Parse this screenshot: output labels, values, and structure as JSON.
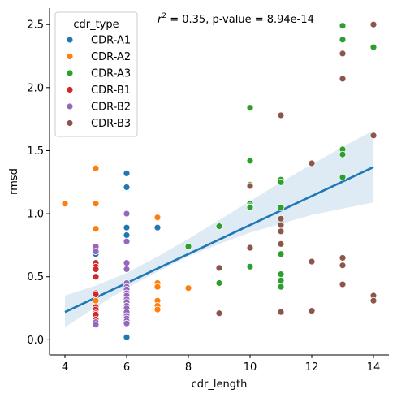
{
  "chart_data": {
    "type": "scatter",
    "xlabel": "cdr_length",
    "ylabel": "rmsd",
    "xlim": [
      3.5,
      14.5
    ],
    "ylim": [
      -0.12,
      2.63
    ],
    "x_ticks": [
      4,
      6,
      8,
      10,
      12,
      14
    ],
    "x_tick_labels": [
      "4",
      "6",
      "8",
      "10",
      "12",
      "14"
    ],
    "y_ticks": [
      0.0,
      0.5,
      1.0,
      1.5,
      2.0,
      2.5
    ],
    "y_tick_labels": [
      "0.0",
      "0.5",
      "1.0",
      "1.5",
      "2.0",
      "2.5"
    ],
    "grid": false,
    "legend_title": "cdr_type",
    "legend_position": "top-left",
    "annotation": {
      "r_symbol": "r",
      "exponent": "2",
      "text": " =  0.35, p-value =  8.94e-14"
    },
    "series": [
      {
        "name": "CDR-A1",
        "color": "#1f77b4",
        "x": [
          5,
          6,
          6,
          6,
          6,
          6,
          7,
          6
        ],
        "y": [
          0.68,
          1.32,
          1.21,
          0.89,
          0.83,
          0.78,
          0.89,
          0.02
        ]
      },
      {
        "name": "CDR-A2",
        "color": "#ff7f0e",
        "x": [
          4,
          5,
          5,
          5,
          5,
          5,
          5,
          7,
          7,
          7,
          7,
          7,
          7,
          8
        ],
        "y": [
          1.08,
          1.36,
          1.08,
          0.88,
          0.31,
          0.18,
          0.15,
          0.97,
          0.45,
          0.42,
          0.31,
          0.27,
          0.24,
          0.41
        ]
      },
      {
        "name": "CDR-A3",
        "color": "#2ca02c",
        "x": [
          8,
          9,
          9,
          10,
          10,
          10,
          10,
          10,
          10,
          10,
          11,
          11,
          11,
          11,
          11,
          11,
          11,
          11,
          13,
          13,
          13,
          13,
          13,
          14
        ],
        "y": [
          0.74,
          0.9,
          0.45,
          1.84,
          1.42,
          1.23,
          1.08,
          1.06,
          0.58,
          1.05,
          1.27,
          1.25,
          1.05,
          0.68,
          0.52,
          0.47,
          0.42,
          0.94,
          2.49,
          2.38,
          1.51,
          1.47,
          1.29,
          2.32
        ]
      },
      {
        "name": "CDR-B1",
        "color": "#d62728",
        "x": [
          5,
          5,
          5,
          5,
          5,
          5,
          5,
          5,
          5,
          5,
          5
        ],
        "y": [
          0.61,
          0.58,
          0.56,
          0.5,
          0.37,
          0.36,
          0.26,
          0.24,
          0.21,
          0.2,
          0.16
        ]
      },
      {
        "name": "CDR-B2",
        "color": "#9467bd",
        "x": [
          5,
          5,
          5,
          5,
          6,
          6,
          6,
          6,
          6,
          6,
          6,
          6,
          6,
          6,
          6,
          6,
          6,
          6,
          6,
          6,
          6,
          6
        ],
        "y": [
          0.74,
          0.7,
          0.14,
          0.12,
          1.0,
          0.78,
          0.61,
          0.56,
          0.45,
          0.42,
          0.4,
          0.37,
          0.35,
          0.32,
          0.3,
          0.27,
          0.25,
          0.22,
          0.19,
          0.17,
          0.15,
          0.13
        ]
      },
      {
        "name": "CDR-B3",
        "color": "#8c564b",
        "x": [
          9,
          9,
          10,
          10,
          11,
          11,
          11,
          11,
          11,
          11,
          12,
          12,
          12,
          13,
          13,
          13,
          13,
          13,
          14,
          14,
          14,
          14
        ],
        "y": [
          0.57,
          0.21,
          1.22,
          0.73,
          1.78,
          0.96,
          0.91,
          0.86,
          0.76,
          0.22,
          1.4,
          0.62,
          0.23,
          2.27,
          2.07,
          0.65,
          0.59,
          0.44,
          2.5,
          1.62,
          0.35,
          0.31
        ]
      }
    ],
    "regression": {
      "color": "#1f77b4",
      "ci_color": "#1f77b4",
      "x": [
        4,
        14
      ],
      "y": [
        0.22,
        1.37
      ],
      "ci_lower_x": [
        4,
        5,
        6,
        7,
        8,
        9,
        10,
        11,
        12,
        13,
        14
      ],
      "ci_lower_y": [
        0.1,
        0.26,
        0.41,
        0.54,
        0.66,
        0.76,
        0.85,
        0.92,
        0.99,
        1.04,
        1.09
      ],
      "ci_upper_x": [
        4,
        5,
        6,
        7,
        8,
        9,
        10,
        11,
        12,
        13,
        14
      ],
      "ci_upper_y": [
        0.35,
        0.43,
        0.53,
        0.66,
        0.8,
        0.95,
        1.1,
        1.25,
        1.39,
        1.53,
        1.66
      ]
    }
  }
}
